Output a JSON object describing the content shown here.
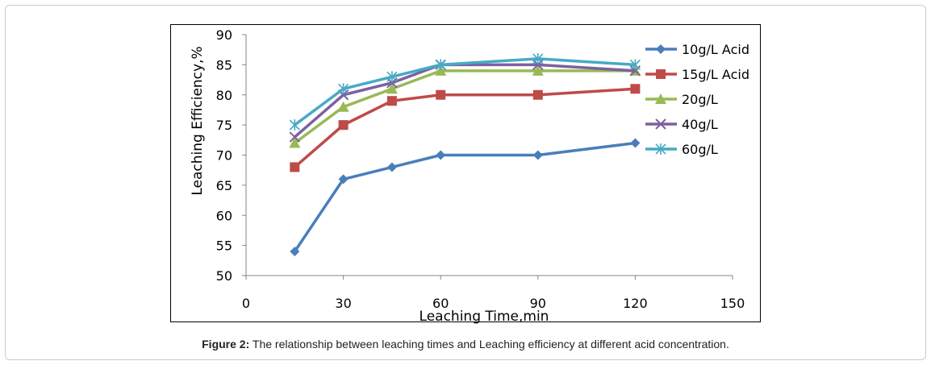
{
  "caption": {
    "label": "Figure 2:",
    "text": " The relationship between leaching times and Leaching efficiency at different acid concentration."
  },
  "chart_data": {
    "type": "line",
    "title": "",
    "xlabel": "Leaching Time,min",
    "ylabel": "Leaching Efficiency,%",
    "xlim": [
      0,
      150
    ],
    "ylim": [
      50,
      90
    ],
    "xticks": [
      0,
      30,
      60,
      90,
      120,
      150
    ],
    "yticks": [
      50,
      55,
      60,
      65,
      70,
      75,
      80,
      85,
      90
    ],
    "grid": false,
    "legend_position": "right",
    "x": [
      15,
      30,
      45,
      60,
      90,
      120
    ],
    "series": [
      {
        "name": "10g/L Acid",
        "color": "#4a7ebb",
        "marker": "diamond",
        "values": [
          54,
          66,
          68,
          70,
          70,
          72
        ]
      },
      {
        "name": "15g/L Acid",
        "color": "#be4b48",
        "marker": "square",
        "values": [
          68,
          75,
          79,
          80,
          80,
          81
        ]
      },
      {
        "name": "20g/L",
        "color": "#98b954",
        "marker": "triangle",
        "values": [
          72,
          78,
          81,
          84,
          84,
          84
        ]
      },
      {
        "name": "40g/L",
        "color": "#7d60a0",
        "marker": "x",
        "values": [
          73,
          80,
          82,
          85,
          85,
          84
        ]
      },
      {
        "name": "60g/L",
        "color": "#46aac5",
        "marker": "star",
        "values": [
          75,
          81,
          83,
          85,
          86,
          85
        ]
      }
    ]
  }
}
